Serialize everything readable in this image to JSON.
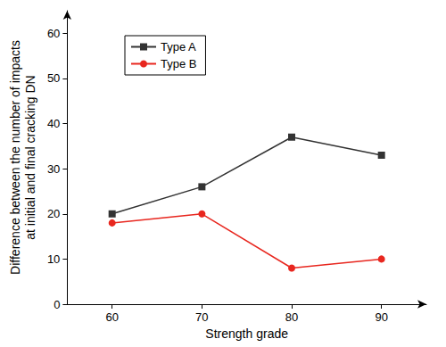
{
  "chart_data": {
    "type": "line",
    "x_label": "Strength grade",
    "y_label": "Difference between the number of impacts\nat initial and final cracking DN",
    "x": [
      60,
      70,
      80,
      90
    ],
    "series": [
      {
        "name": "Type A",
        "color": "#333333",
        "marker": "square",
        "line_style": "solid",
        "values": [
          20,
          26,
          37,
          33
        ]
      },
      {
        "name": "Type B",
        "color": "#e8271f",
        "marker": "circle",
        "line_style": "solid",
        "values": [
          18,
          20,
          8,
          10
        ]
      }
    ],
    "xlim": [
      55,
      95
    ],
    "xticks": [
      60,
      70,
      80,
      90
    ],
    "ylim": [
      0,
      65
    ],
    "yticks": [
      0,
      10,
      20,
      30,
      40,
      50,
      60
    ],
    "grid": false,
    "legend": "upper left"
  }
}
